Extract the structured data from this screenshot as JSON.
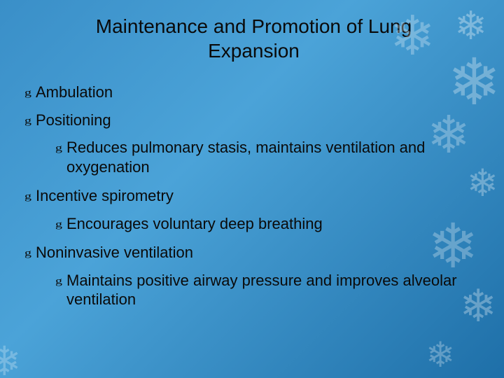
{
  "slide": {
    "title": "Maintenance and Promotion of Lung Expansion",
    "title_fontsize": 28,
    "title_color": "#0a0a0a",
    "body_fontsize": 22,
    "body_color": "#0a0a0a",
    "bullet_glyph": "g",
    "background_gradient": [
      "#3a8fc8",
      "#4ba3d8",
      "#1e6fa8"
    ],
    "snowflake_color": "rgba(255,255,255,0.55)",
    "bullets": [
      {
        "level": 1,
        "text": "Ambulation"
      },
      {
        "level": 1,
        "text": "Positioning"
      },
      {
        "level": 2,
        "text": "Reduces pulmonary stasis, maintains ventilation and oxygenation"
      },
      {
        "level": 1,
        "text": "Incentive spirometry"
      },
      {
        "level": 2,
        "text": "Encourages voluntary deep breathing"
      },
      {
        "level": 1,
        "text": "Noninvasive ventilation"
      },
      {
        "level": 2,
        "text": "Maintains positive airway pressure and improves alveolar ventilation"
      }
    ]
  }
}
